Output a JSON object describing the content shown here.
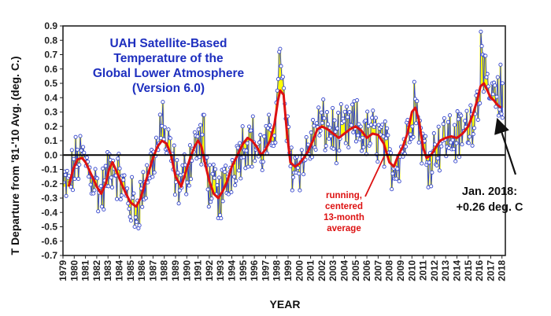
{
  "chart_data": {
    "type": "line",
    "title_lines": [
      "UAH Satellite-Based",
      "Temperature of the",
      "Global Lower Atmosphere",
      "(Version 6.0)"
    ],
    "xlabel": "YEAR",
    "ylabel": "T Departure from '81-'10 Avg. (deg. C.)",
    "xlim": [
      1979,
      2018.3
    ],
    "ylim": [
      -0.7,
      0.9
    ],
    "yticks": [
      "0.9",
      "0.8",
      "0.7",
      "0.6",
      "0.5",
      "0.4",
      "0.3",
      "0.2",
      "0.1",
      "0.0",
      "-0.1",
      "-0.2",
      "-0.3",
      "-0.4",
      "-0.5",
      "-0.6",
      "-0.7"
    ],
    "xticks": [
      "1979",
      "1980",
      "1981",
      "1982",
      "1983",
      "1984",
      "1985",
      "1986",
      "1987",
      "1988",
      "1989",
      "1990",
      "1991",
      "1992",
      "1993",
      "1994",
      "1995",
      "1996",
      "1997",
      "1998",
      "1999",
      "2000",
      "2001",
      "2002",
      "2003",
      "2004",
      "2005",
      "2006",
      "2007",
      "2008",
      "2009",
      "2010",
      "2011",
      "2012",
      "2013",
      "2014",
      "2015",
      "2016",
      "2017",
      "2018"
    ],
    "smooth_label_lines": [
      "running,",
      "centered",
      "13-month",
      "average"
    ],
    "latest_label_lines": [
      "Jan. 2018:",
      "+0.26 deg. C"
    ],
    "latest_point": {
      "x": 2018.04,
      "y": 0.26
    },
    "colors": {
      "monthly": "#3344cc",
      "smoothed": "#dd1111",
      "fill": "#ffff00",
      "title": "#1e2fbf",
      "anno": "#dd1111"
    },
    "series": [
      {
        "name": "13-month running average",
        "x": [
          1979.5,
          1979.9,
          1980.3,
          1980.7,
          1981.0,
          1981.3,
          1981.6,
          1982.0,
          1982.4,
          1982.8,
          1983.1,
          1983.4,
          1983.8,
          1984.2,
          1984.6,
          1985.0,
          1985.5,
          1985.9,
          1986.2,
          1986.6,
          1987.0,
          1987.4,
          1987.8,
          1988.2,
          1988.6,
          1989.0,
          1989.5,
          1989.9,
          1990.3,
          1990.7,
          1991.0,
          1991.3,
          1991.6,
          1992.0,
          1992.4,
          1992.8,
          1993.2,
          1993.6,
          1994.0,
          1994.5,
          1995.0,
          1995.4,
          1995.8,
          1996.2,
          1996.6,
          1997.0,
          1997.4,
          1997.8,
          1998.1,
          1998.3,
          1998.6,
          1998.9,
          1999.2,
          1999.6,
          2000.0,
          2000.4,
          2000.8,
          2001.2,
          2001.6,
          2002.0,
          2002.5,
          2003.0,
          2003.5,
          2004.0,
          2004.5,
          2005.0,
          2005.5,
          2006.0,
          2006.5,
          2007.0,
          2007.5,
          2008.0,
          2008.4,
          2008.8,
          2009.2,
          2009.6,
          2010.0,
          2010.3,
          2010.6,
          2011.0,
          2011.3,
          2011.7,
          2012.1,
          2012.5,
          2013.0,
          2013.5,
          2014.0,
          2014.5,
          2015.0,
          2015.4,
          2015.8,
          2016.1,
          2016.4,
          2016.7,
          2017.0,
          2017.3,
          2017.6,
          2017.9
        ],
        "values": [
          -0.22,
          -0.1,
          -0.03,
          -0.02,
          -0.05,
          -0.1,
          -0.15,
          -0.22,
          -0.27,
          -0.2,
          -0.1,
          -0.05,
          -0.12,
          -0.2,
          -0.27,
          -0.33,
          -0.36,
          -0.3,
          -0.22,
          -0.12,
          -0.02,
          0.06,
          0.1,
          0.08,
          0.0,
          -0.15,
          -0.22,
          -0.12,
          -0.02,
          0.06,
          0.1,
          0.06,
          -0.05,
          -0.18,
          -0.27,
          -0.3,
          -0.25,
          -0.18,
          -0.08,
          0.0,
          0.08,
          0.12,
          0.1,
          0.06,
          0.0,
          0.04,
          0.1,
          0.22,
          0.38,
          0.45,
          0.42,
          0.15,
          -0.05,
          -0.08,
          -0.06,
          -0.02,
          0.03,
          0.1,
          0.18,
          0.2,
          0.18,
          0.15,
          0.12,
          0.15,
          0.18,
          0.2,
          0.17,
          0.12,
          0.15,
          0.14,
          0.08,
          -0.05,
          -0.08,
          0.0,
          0.06,
          0.15,
          0.3,
          0.33,
          0.25,
          0.05,
          -0.02,
          -0.0,
          0.05,
          0.1,
          0.12,
          0.13,
          0.12,
          0.15,
          0.2,
          0.28,
          0.38,
          0.48,
          0.5,
          0.45,
          0.4,
          0.38,
          0.35,
          0.33
        ]
      }
    ]
  }
}
